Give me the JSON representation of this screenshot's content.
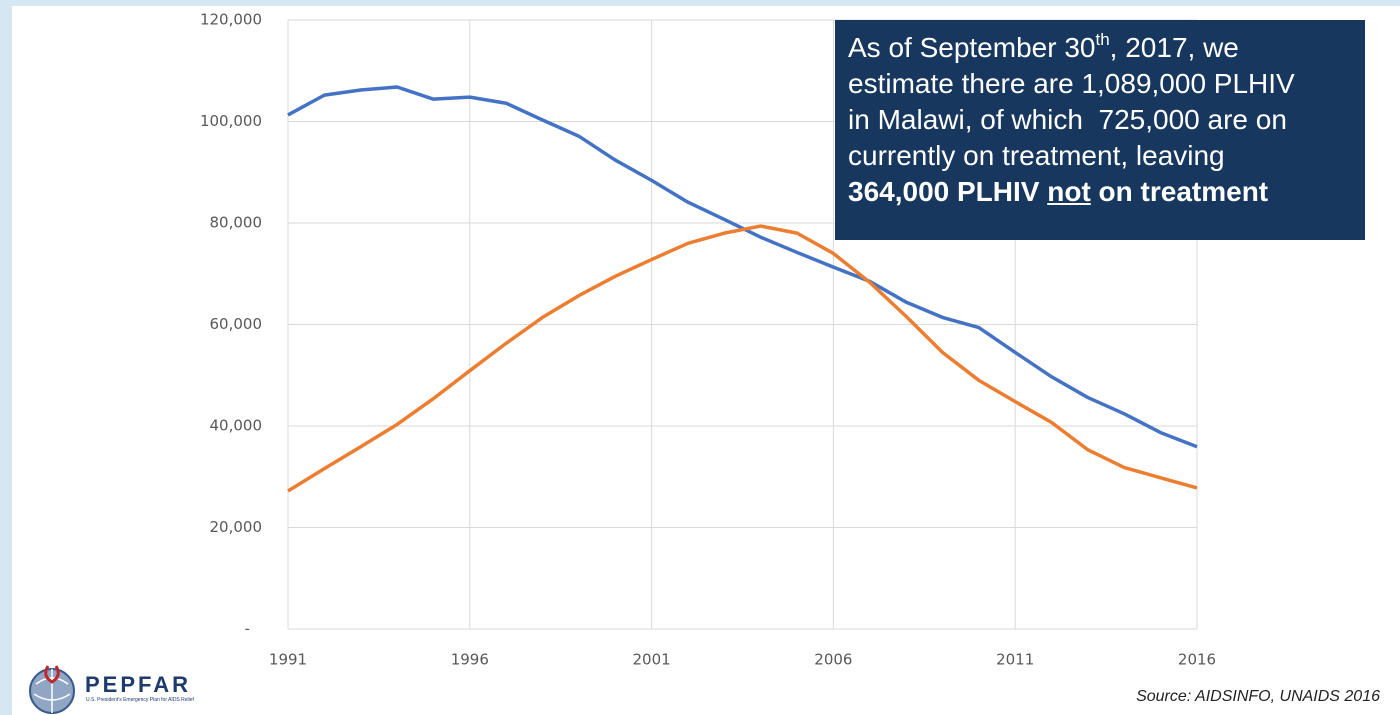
{
  "chart_data": {
    "type": "line",
    "x": [
      1991,
      1992,
      1993,
      1994,
      1995,
      1996,
      1997,
      1998,
      1999,
      2000,
      2001,
      2002,
      2003,
      2004,
      2005,
      2006,
      2007,
      2008,
      2009,
      2010,
      2011,
      2012,
      2013,
      2014,
      2015,
      2016
    ],
    "series": [
      {
        "color": "#4472c4",
        "values": [
          101300,
          105200,
          106200,
          106800,
          104400,
          104800,
          103600,
          100300,
          97100,
          92400,
          88400,
          84100,
          80700,
          77200,
          74200,
          71300,
          68500,
          64400,
          61400,
          59400,
          54500,
          49700,
          45600,
          42400,
          38700,
          35900
        ]
      },
      {
        "color": "#ed7d31",
        "values": [
          27200,
          31600,
          35900,
          40300,
          45400,
          50900,
          56300,
          61400,
          65700,
          69500,
          72800,
          76000,
          78000,
          79400,
          78000,
          74000,
          68300,
          61600,
          54500,
          49000,
          44800,
          40700,
          35300,
          31800,
          29800,
          27800
        ]
      }
    ],
    "xlim": [
      1991,
      2016
    ],
    "xticks": [
      1991,
      1996,
      2001,
      2006,
      2011,
      2016
    ],
    "ylim": [
      0,
      120000
    ],
    "yticks": [
      {
        "value": 0,
        "label": "-"
      },
      {
        "value": 20000,
        "label": "20,000"
      },
      {
        "value": 40000,
        "label": "40,000"
      },
      {
        "value": 60000,
        "label": "60,000"
      },
      {
        "value": 80000,
        "label": "80,000"
      },
      {
        "value": 100000,
        "label": "100,000"
      },
      {
        "value": 120000,
        "label": "120,000"
      }
    ],
    "grid": true,
    "annotation": [
      "As of September 30",
      "th",
      ", 2017, we",
      "estimate there are 1,089,000 PLHIV",
      "in Malawi, of which  725,000 are on",
      "currently on treatment, leaving",
      "364,000 PLHIV",
      "not",
      "on treatment"
    ],
    "source": "Source: AIDSINFO, UNAIDS 2016"
  },
  "logo": {
    "name": "PEPFAR",
    "tagline": "U.S. President's Emergency Plan for AIDS Relief"
  }
}
